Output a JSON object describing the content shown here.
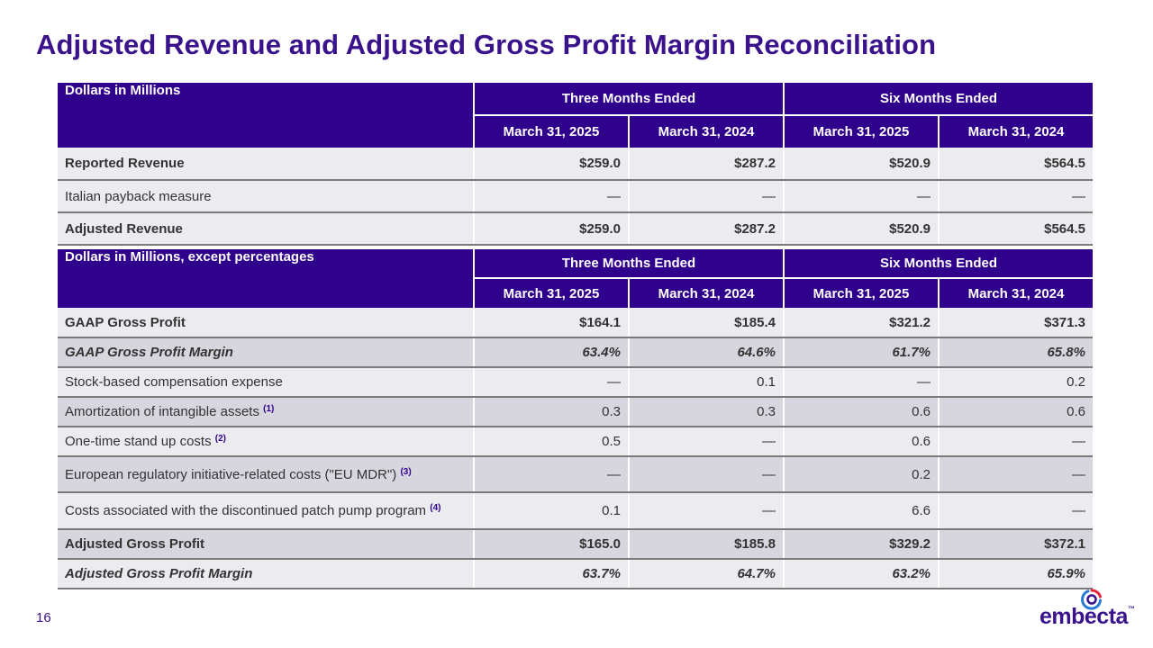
{
  "title": "Adjusted Revenue and Adjusted Gross Profit Margin Reconciliation",
  "page_number": "16",
  "logo": {
    "text": "embecta",
    "tm": "™"
  },
  "colors": {
    "brand": "#2e008b",
    "title": "#3a138c",
    "row_light": "#ecebf0",
    "row_grey": "#d7d6df",
    "logo_red": "#e5233d",
    "logo_blue": "#2b7bd3"
  },
  "table1": {
    "header_label": "Dollars in Millions",
    "group1": "Three Months Ended",
    "group2": "Six Months Ended",
    "dates": [
      "March 31, 2025",
      "March 31, 2024",
      "March 31, 2025",
      "March 31, 2024"
    ],
    "rows": [
      {
        "label": "Reported Revenue",
        "fn": "",
        "values": [
          "$259.0",
          "$287.2",
          "$520.9",
          "$564.5"
        ]
      },
      {
        "label": "Italian payback measure",
        "fn": "",
        "values": [
          "—",
          "—",
          "—",
          "—"
        ]
      },
      {
        "label": "Adjusted Revenue",
        "fn": "",
        "values": [
          "$259.0",
          "$287.2",
          "$520.9",
          "$564.5"
        ]
      }
    ]
  },
  "table2": {
    "header_label": "Dollars in Millions, except percentages",
    "group1": "Three Months Ended",
    "group2": "Six Months Ended",
    "dates": [
      "March 31, 2025",
      "March 31, 2024",
      "March 31, 2025",
      "March 31, 2024"
    ],
    "rows": [
      {
        "label": "GAAP Gross Profit",
        "fn": "",
        "values": [
          "$164.1",
          "$185.4",
          "$321.2",
          "$371.3"
        ]
      },
      {
        "label": "GAAP Gross Profit Margin",
        "fn": "",
        "values": [
          "63.4%",
          "64.6%",
          "61.7%",
          "65.8%"
        ]
      },
      {
        "label": "Stock-based compensation expense",
        "fn": "",
        "values": [
          "—",
          "0.1",
          "—",
          "0.2"
        ]
      },
      {
        "label": "Amortization of intangible assets",
        "fn": "(1)",
        "values": [
          "0.3",
          "0.3",
          "0.6",
          "0.6"
        ]
      },
      {
        "label": "One-time stand up costs",
        "fn": "(2)",
        "values": [
          "0.5",
          "—",
          "0.6",
          "—"
        ]
      },
      {
        "label": "European regulatory initiative-related costs (\"EU MDR\")",
        "fn": "(3)",
        "values": [
          "—",
          "—",
          "0.2",
          "—"
        ]
      },
      {
        "label": "Costs associated with the discontinued patch pump program",
        "fn": "(4)",
        "values": [
          "0.1",
          "—",
          "6.6",
          "—"
        ]
      },
      {
        "label": "Adjusted Gross Profit",
        "fn": "",
        "values": [
          "$165.0",
          "$185.8",
          "$329.2",
          "$372.1"
        ]
      },
      {
        "label": "Adjusted Gross Profit Margin",
        "fn": "",
        "values": [
          "63.7%",
          "64.7%",
          "63.2%",
          "65.9%"
        ]
      }
    ]
  }
}
